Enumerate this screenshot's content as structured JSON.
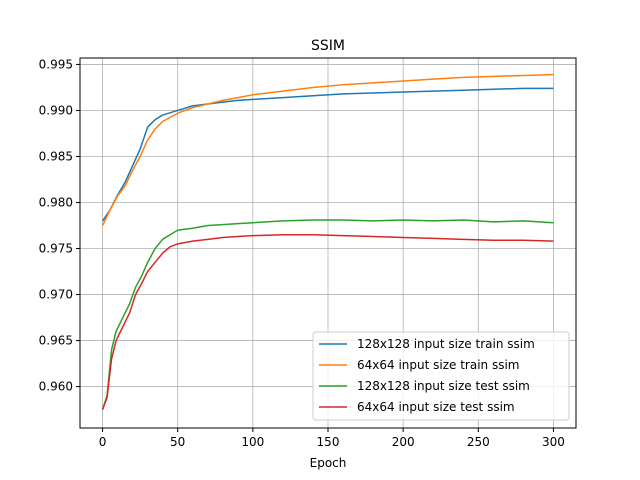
{
  "chart_data": {
    "type": "line",
    "title": "SSIM",
    "xlabel": "Epoch",
    "ylabel": "",
    "xlim": [
      -15,
      315
    ],
    "ylim": [
      0.9555,
      0.9957
    ],
    "grid": true,
    "legend_position": "lower-right",
    "x_ticks": [
      0,
      50,
      100,
      150,
      200,
      250,
      300
    ],
    "y_ticks": [
      0.96,
      0.965,
      0.97,
      0.975,
      0.98,
      0.985,
      0.99,
      0.995
    ],
    "x_tick_labels": [
      "0",
      "50",
      "100",
      "150",
      "200",
      "250",
      "300"
    ],
    "y_tick_labels": [
      "0.960",
      "0.965",
      "0.970",
      "0.975",
      "0.980",
      "0.985",
      "0.990",
      "0.995"
    ],
    "series": [
      {
        "name": "128x128 input size train ssim",
        "color": "#1f77b4",
        "points": [
          [
            0,
            0.978
          ],
          [
            5,
            0.9792
          ],
          [
            10,
            0.9808
          ],
          [
            15,
            0.9822
          ],
          [
            20,
            0.984
          ],
          [
            25,
            0.9858
          ],
          [
            30,
            0.9882
          ],
          [
            35,
            0.989
          ],
          [
            40,
            0.9895
          ],
          [
            50,
            0.99
          ],
          [
            60,
            0.9905
          ],
          [
            70,
            0.9907
          ],
          [
            80,
            0.9909
          ],
          [
            90,
            0.9911
          ],
          [
            100,
            0.9912
          ],
          [
            120,
            0.9914
          ],
          [
            140,
            0.9916
          ],
          [
            160,
            0.9918
          ],
          [
            180,
            0.9919
          ],
          [
            200,
            0.992
          ],
          [
            220,
            0.9921
          ],
          [
            240,
            0.9922
          ],
          [
            260,
            0.9923
          ],
          [
            280,
            0.9924
          ],
          [
            300,
            0.9924
          ]
        ]
      },
      {
        "name": "64x64 input size train ssim",
        "color": "#ff7f0e",
        "points": [
          [
            0,
            0.9775
          ],
          [
            5,
            0.9792
          ],
          [
            10,
            0.9807
          ],
          [
            15,
            0.9818
          ],
          [
            20,
            0.9835
          ],
          [
            25,
            0.985
          ],
          [
            30,
            0.9868
          ],
          [
            35,
            0.988
          ],
          [
            40,
            0.9888
          ],
          [
            50,
            0.9897
          ],
          [
            60,
            0.9903
          ],
          [
            70,
            0.9907
          ],
          [
            80,
            0.9911
          ],
          [
            90,
            0.9914
          ],
          [
            100,
            0.9917
          ],
          [
            120,
            0.9921
          ],
          [
            140,
            0.9925
          ],
          [
            160,
            0.9928
          ],
          [
            180,
            0.993
          ],
          [
            200,
            0.9932
          ],
          [
            220,
            0.9934
          ],
          [
            240,
            0.9936
          ],
          [
            260,
            0.9937
          ],
          [
            280,
            0.9938
          ],
          [
            300,
            0.9939
          ]
        ]
      },
      {
        "name": "128x128 input size test ssim",
        "color": "#2ca02c",
        "points": [
          [
            0,
            0.9575
          ],
          [
            3,
            0.959
          ],
          [
            6,
            0.964
          ],
          [
            9,
            0.966
          ],
          [
            12,
            0.967
          ],
          [
            15,
            0.968
          ],
          [
            18,
            0.969
          ],
          [
            22,
            0.9708
          ],
          [
            26,
            0.972
          ],
          [
            30,
            0.9735
          ],
          [
            35,
            0.975
          ],
          [
            40,
            0.976
          ],
          [
            45,
            0.9765
          ],
          [
            50,
            0.977
          ],
          [
            60,
            0.9772
          ],
          [
            70,
            0.9775
          ],
          [
            80,
            0.9776
          ],
          [
            90,
            0.9777
          ],
          [
            100,
            0.9778
          ],
          [
            120,
            0.978
          ],
          [
            140,
            0.9781
          ],
          [
            160,
            0.9781
          ],
          [
            180,
            0.978
          ],
          [
            200,
            0.9781
          ],
          [
            220,
            0.978
          ],
          [
            240,
            0.9781
          ],
          [
            260,
            0.9779
          ],
          [
            280,
            0.978
          ],
          [
            300,
            0.9778
          ]
        ]
      },
      {
        "name": "64x64 input size test ssim",
        "color": "#d62728",
        "points": [
          [
            0,
            0.9575
          ],
          [
            3,
            0.9588
          ],
          [
            6,
            0.963
          ],
          [
            9,
            0.965
          ],
          [
            12,
            0.966
          ],
          [
            15,
            0.967
          ],
          [
            18,
            0.968
          ],
          [
            22,
            0.97
          ],
          [
            26,
            0.9712
          ],
          [
            30,
            0.9725
          ],
          [
            35,
            0.9735
          ],
          [
            40,
            0.9745
          ],
          [
            45,
            0.9752
          ],
          [
            50,
            0.9755
          ],
          [
            60,
            0.9758
          ],
          [
            70,
            0.976
          ],
          [
            80,
            0.9762
          ],
          [
            90,
            0.9763
          ],
          [
            100,
            0.9764
          ],
          [
            120,
            0.9765
          ],
          [
            140,
            0.9765
          ],
          [
            160,
            0.9764
          ],
          [
            180,
            0.9763
          ],
          [
            200,
            0.9762
          ],
          [
            220,
            0.9761
          ],
          [
            240,
            0.976
          ],
          [
            260,
            0.9759
          ],
          [
            280,
            0.9759
          ],
          [
            300,
            0.9758
          ]
        ]
      }
    ]
  }
}
